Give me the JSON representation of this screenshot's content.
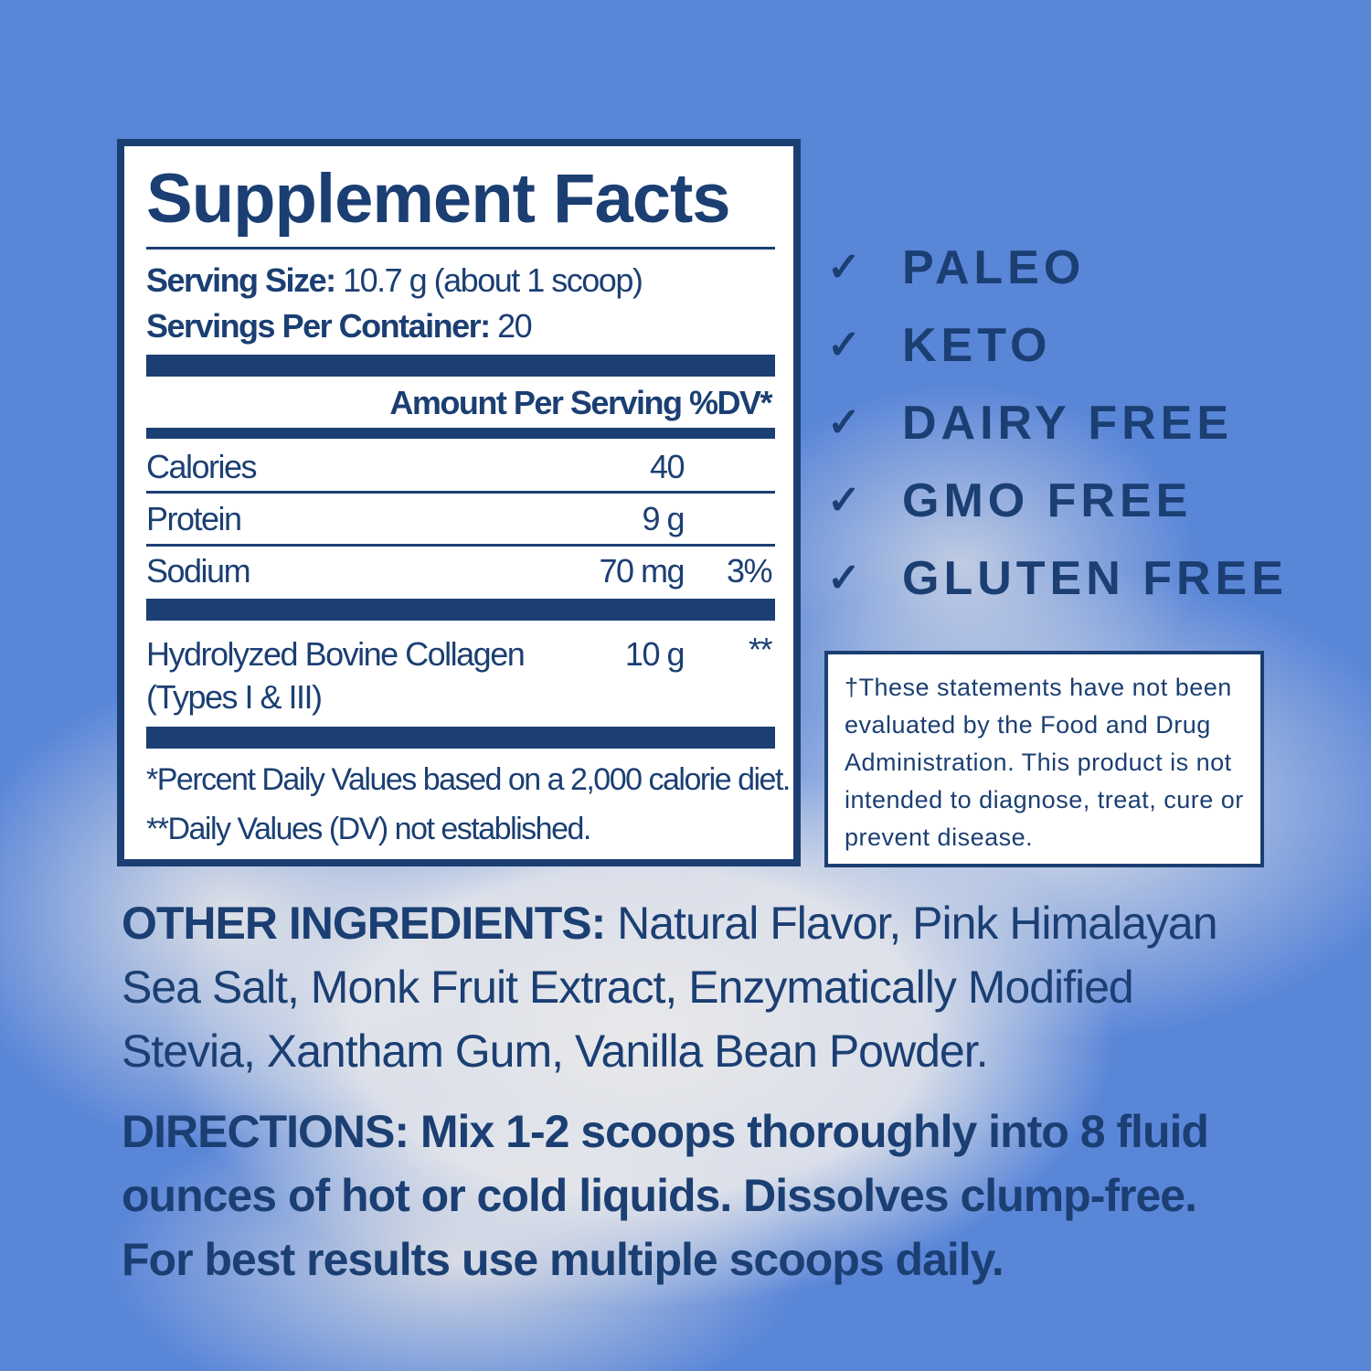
{
  "colors": {
    "navy": "#1b3f73",
    "background": "#5a86d8"
  },
  "facts": {
    "title": "Supplement Facts",
    "serving_size_label": "Serving Size:",
    "serving_size_value": " 10.7 g (about 1 scoop)",
    "servings_label": "Servings Per Container:",
    "servings_value": " 20",
    "header": "Amount Per Serving %DV*",
    "rows": [
      {
        "name": "Calories",
        "amount": "40",
        "dv": ""
      },
      {
        "name": "Protein",
        "amount": "9 g",
        "dv": ""
      },
      {
        "name": "Sodium",
        "amount": "70 mg",
        "dv": "3%"
      },
      {
        "name": "Hydrolyzed Bovine Collagen",
        "name2": "(Types I & III)",
        "amount": "10 g",
        "dv": "**"
      }
    ],
    "footnote1": "*Percent Daily Values based on a 2,000 calorie diet.",
    "footnote2": "**Daily Values (DV) not established."
  },
  "claims": [
    {
      "icon": "check-icon",
      "label": "PALEO"
    },
    {
      "icon": "check-icon",
      "label": "KETO"
    },
    {
      "icon": "check-icon",
      "label": "DAIRY FREE"
    },
    {
      "icon": "check-icon",
      "label": "GMO FREE"
    },
    {
      "icon": "check-icon",
      "label": "GLUTEN FREE"
    }
  ],
  "disclaimer": "†These statements have not been evaluated by the Food and Drug Administration. This product is not intended to diagnose, treat, cure or prevent disease.",
  "other_ingredients": {
    "label": "OTHER INGREDIENTS:",
    "text": " Natural Flavor, Pink Himalayan Sea Salt, Monk Fruit Extract, Enzymatically Modified Stevia, Xantham Gum, Vanilla Bean Powder."
  },
  "directions": {
    "label": "DIRECTIONS:",
    "text": " Mix 1-2 scoops thoroughly into 8 fluid ounces of hot or cold liquids. Dissolves clump-free. For best results use multiple scoops daily."
  }
}
